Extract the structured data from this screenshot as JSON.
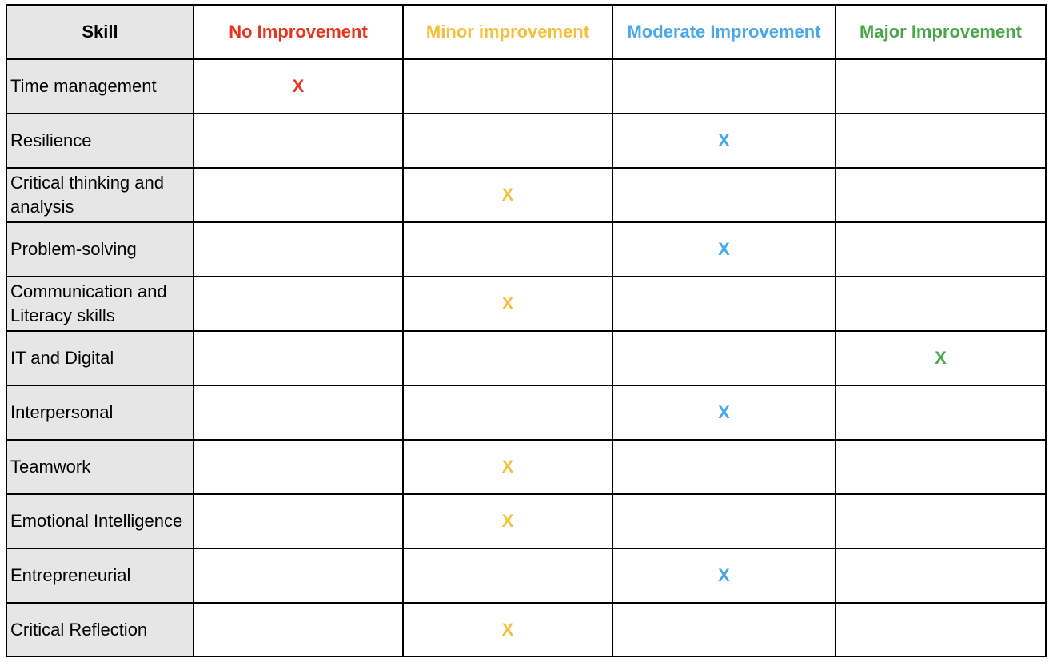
{
  "table": {
    "columns": [
      {
        "label": "Skill",
        "color": "#000000"
      },
      {
        "label": "No Improvement",
        "color": "#e8321e"
      },
      {
        "label": "Minor improvement",
        "color": "#f6bf3b"
      },
      {
        "label": "Moderate Improvement",
        "color": "#4aa8e8"
      },
      {
        "label": "Major Improvement",
        "color": "#4aa64a"
      }
    ],
    "mark_symbol": "X",
    "rows": [
      {
        "skill": "Time management",
        "level": 0
      },
      {
        "skill": "Resilience",
        "level": 2
      },
      {
        "skill": "Critical thinking and analysis",
        "level": 1
      },
      {
        "skill": "Problem-solving",
        "level": 2
      },
      {
        "skill": "Communication and Literacy skills",
        "level": 1
      },
      {
        "skill": "IT and Digital",
        "level": 3
      },
      {
        "skill": "Interpersonal",
        "level": 2
      },
      {
        "skill": "Teamwork",
        "level": 1
      },
      {
        "skill": "Emotional Intelligence",
        "level": 1
      },
      {
        "skill": "Entrepreneurial",
        "level": 2
      },
      {
        "skill": "Critical Reflection",
        "level": 1
      }
    ]
  }
}
